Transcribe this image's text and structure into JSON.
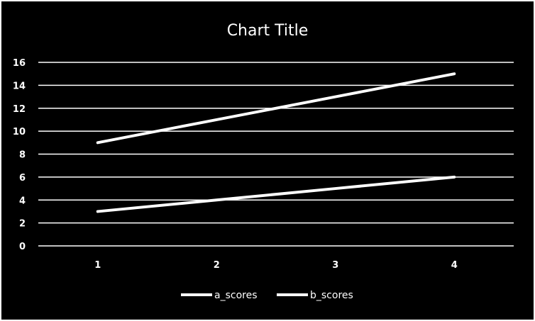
{
  "chart_data": {
    "type": "line",
    "title": "Chart Title",
    "xlabel": "",
    "ylabel": "",
    "x": [
      1,
      2,
      3,
      4
    ],
    "ylim": [
      0,
      16
    ],
    "yticks": [
      0,
      2,
      4,
      6,
      8,
      10,
      12,
      14,
      16
    ],
    "grid": true,
    "legend_position": "bottom",
    "line_color": "#ffffff",
    "background_color": "#000000",
    "series": [
      {
        "name": "a_scores",
        "values": [
          3,
          4,
          5,
          6
        ]
      },
      {
        "name": "b_scores",
        "values": [
          9,
          11,
          13,
          15
        ]
      }
    ]
  }
}
